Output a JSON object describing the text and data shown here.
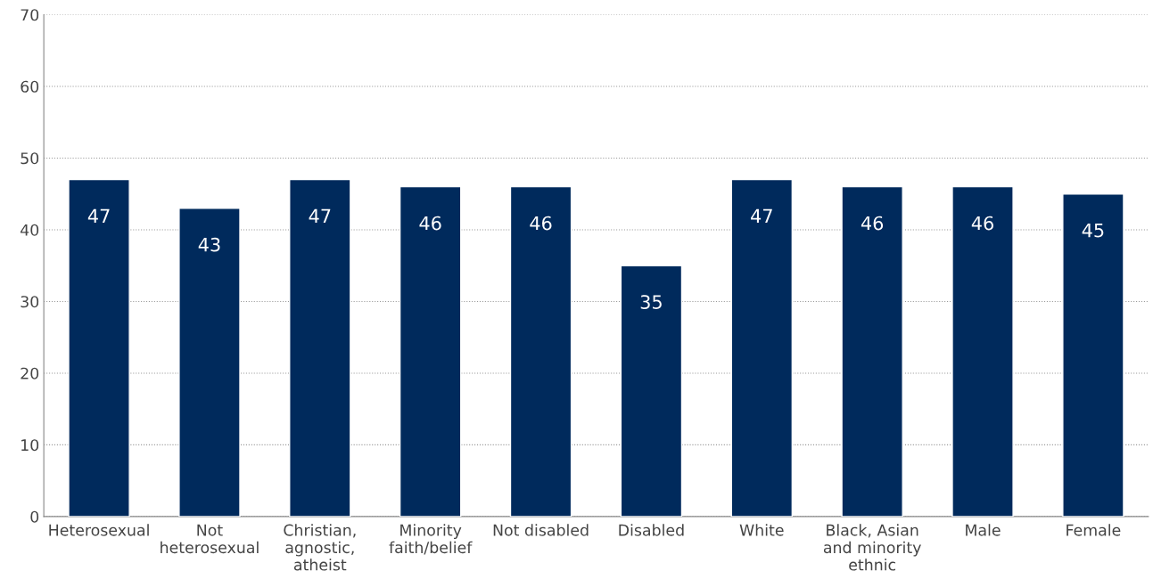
{
  "chart_data": {
    "type": "bar",
    "categories": [
      "Heterosexual",
      "Not\nheterosexual",
      "Christian,\nagnostic,\natheist",
      "Minority\nfaith/belief",
      "Not disabled",
      "Disabled",
      "White",
      "Black, Asian\nand minority\nethnic",
      "Male",
      "Female"
    ],
    "values": [
      47,
      43,
      47,
      46,
      46,
      35,
      47,
      46,
      46,
      45
    ],
    "color": "#002a5c",
    "ylim": [
      0,
      70
    ],
    "yticks": [
      0,
      10,
      20,
      30,
      40,
      50,
      60,
      70
    ],
    "grid": "y",
    "data_labels": true
  }
}
